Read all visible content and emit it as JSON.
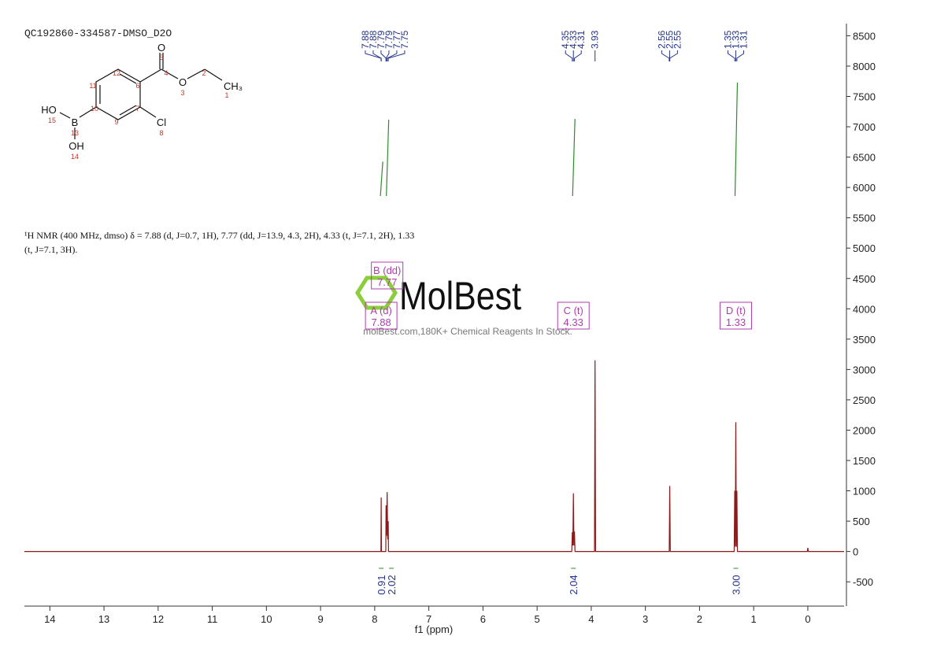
{
  "chart_data": {
    "type": "line",
    "title": "QC192860-334587-DMSO_D2O",
    "xlabel": "f1 (ppm)",
    "xlim": [
      14.47,
      -0.67
    ],
    "xticks": [
      14,
      13,
      12,
      11,
      10,
      9,
      8,
      7,
      6,
      5,
      4,
      3,
      2,
      1,
      0
    ],
    "ylim": [
      -900,
      8700
    ],
    "yticks": [
      -500,
      0,
      500,
      1000,
      1500,
      2000,
      2500,
      3000,
      3500,
      4000,
      4500,
      5000,
      5500,
      6000,
      6500,
      7000,
      7500,
      8000,
      8500
    ],
    "color": "#8b1a1a",
    "x": [
      14.47,
      7.91,
      7.885,
      7.88,
      7.875,
      7.795,
      7.79,
      7.78,
      7.77,
      7.76,
      7.75,
      7.745,
      4.36,
      4.35,
      4.34,
      4.33,
      4.32,
      4.31,
      4.3,
      3.94,
      3.93,
      3.92,
      2.56,
      2.55,
      2.54,
      1.36,
      1.35,
      1.34,
      1.33,
      1.32,
      1.31,
      1.3,
      0.01,
      0,
      -0.01,
      -0.67
    ],
    "values": [
      0,
      0,
      0,
      890,
      0,
      0,
      760,
      260,
      980,
      200,
      500,
      0,
      0,
      320,
      100,
      960,
      100,
      330,
      0,
      0,
      3150,
      0,
      0,
      1080,
      0,
      0,
      1000,
      80,
      2130,
      80,
      1000,
      0,
      0,
      60,
      0,
      0
    ],
    "peak_labels": [
      7.88,
      7.88,
      7.79,
      7.79,
      7.77,
      7.75,
      4.35,
      4.33,
      4.31,
      3.93,
      2.56,
      2.55,
      2.55,
      1.35,
      1.33,
      1.31
    ],
    "multiplets": [
      {
        "label": "A (d)",
        "shift": 7.88,
        "integral": 0.91
      },
      {
        "label": "B (dd)",
        "shift": 7.77,
        "integral": 2.02
      },
      {
        "label": "C (t)",
        "shift": 4.33,
        "integral": 2.04
      },
      {
        "label": "D (t)",
        "shift": 1.33,
        "integral": {
          "value": 3,
          "label": "3.00"
        }
      }
    ],
    "description": [
      "¹H NMR (400 MHz, dmso) δ = 7.88 (d, J=0.7, 1H), 7.77 (dd, J=13.9, 4.3, 2H), 4.33 (t, J=7.1, 2H), 1.33",
      "(t, J=7.1, 3H)."
    ],
    "watermark": {
      "brand": "MolBest",
      "tagline": "molBest.com,180K+ Chemical Reagents In Stock."
    },
    "colors": {
      "peak_label": "#24348c",
      "multiplet": "#b03cb0",
      "integral": "#2e8b2e"
    }
  },
  "structure": {
    "labels": [
      "O",
      "5",
      "4",
      "2",
      "CH₃",
      "1",
      "O",
      "3",
      "12",
      "11",
      "6",
      "7",
      "10",
      "9",
      "HO",
      "15",
      "B",
      "13",
      "OH",
      "14",
      "Cl",
      "8"
    ]
  }
}
